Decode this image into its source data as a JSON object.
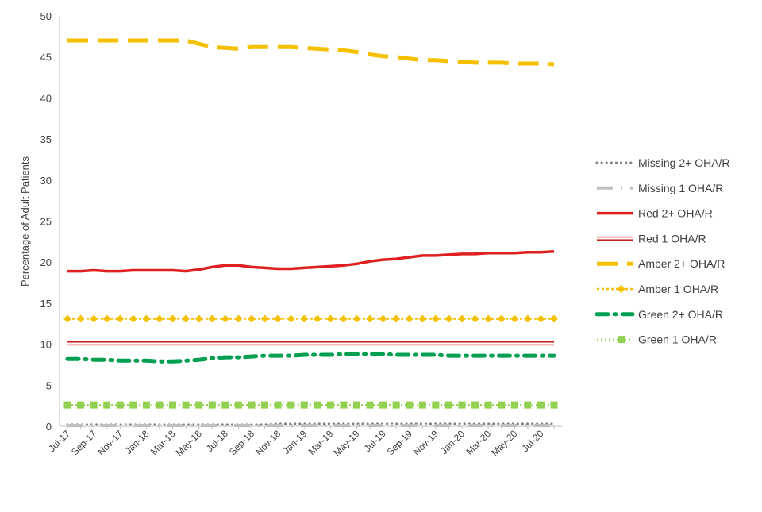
{
  "chart_data": {
    "type": "line",
    "title": "",
    "xlabel": "",
    "ylabel": "Percentage of Adult Patients",
    "ylim": [
      0,
      50
    ],
    "yticks": [
      0,
      5,
      10,
      15,
      20,
      25,
      30,
      35,
      40,
      45,
      50
    ],
    "grid": false,
    "legend_position": "right",
    "x": [
      "Jul-17",
      "Aug-17",
      "Sep-17",
      "Oct-17",
      "Nov-17",
      "Dec-17",
      "Jan-18",
      "Feb-18",
      "Mar-18",
      "Apr-18",
      "May-18",
      "Jun-18",
      "Jul-18",
      "Aug-18",
      "Sep-18",
      "Oct-18",
      "Nov-18",
      "Dec-18",
      "Jan-19",
      "Feb-19",
      "Mar-19",
      "Apr-19",
      "May-19",
      "Jun-19",
      "Jul-19",
      "Aug-19",
      "Sep-19",
      "Oct-19",
      "Nov-19",
      "Dec-19",
      "Jan-20",
      "Feb-20",
      "Mar-20",
      "Apr-20",
      "May-20",
      "Jun-20",
      "Jul-20",
      "Aug-20"
    ],
    "x_tick_labels": [
      "Jul-17",
      "Sep-17",
      "Nov-17",
      "Jan-18",
      "Mar-18",
      "May-18",
      "Jul-18",
      "Sep-18",
      "Nov-18",
      "Jan-19",
      "Mar-19",
      "May-19",
      "Jul-19",
      "Sep-19",
      "Nov-19",
      "Jan-20",
      "Mar-20",
      "May-20",
      "Jul-20"
    ],
    "series": [
      {
        "name": "Missing 2+ OHA/R",
        "color": "#7f7f7f",
        "style": "dotted",
        "values": [
          0.2,
          0.2,
          0.2,
          0.2,
          0.2,
          0.2,
          0.2,
          0.2,
          0.2,
          0.2,
          0.2,
          0.2,
          0.2,
          0.2,
          0.2,
          0.2,
          0.3,
          0.3,
          0.3,
          0.3,
          0.3,
          0.3,
          0.3,
          0.3,
          0.3,
          0.3,
          0.3,
          0.3,
          0.3,
          0.3,
          0.3,
          0.3,
          0.3,
          0.3,
          0.3,
          0.3,
          0.3,
          0.3
        ]
      },
      {
        "name": "Missing 1 OHA/R",
        "color": "#bfbfbf",
        "style": "dash-dot",
        "values": [
          0.1,
          0.1,
          0.1,
          0.1,
          0.1,
          0.1,
          0.1,
          0.1,
          0.1,
          0.1,
          0.1,
          0.1,
          0.1,
          0.1,
          0.1,
          0.1,
          0.1,
          0.1,
          0.1,
          0.1,
          0.1,
          0.1,
          0.1,
          0.1,
          0.1,
          0.1,
          0.1,
          0.1,
          0.1,
          0.1,
          0.1,
          0.1,
          0.1,
          0.1,
          0.1,
          0.1,
          0.1,
          0.1
        ]
      },
      {
        "name": "Red 2+ OHA/R",
        "color": "#e02020",
        "style": "solid",
        "values": [
          18.9,
          18.9,
          19.0,
          18.9,
          18.9,
          19.0,
          19.0,
          19.0,
          19.0,
          18.9,
          19.1,
          19.4,
          19.6,
          19.6,
          19.4,
          19.3,
          19.2,
          19.2,
          19.3,
          19.4,
          19.5,
          19.6,
          19.8,
          20.1,
          20.3,
          20.4,
          20.6,
          20.8,
          20.8,
          20.9,
          21.0,
          21.0,
          21.1,
          21.1,
          21.1,
          21.2,
          21.2,
          21.3
        ]
      },
      {
        "name": "Red 1 OHA/R",
        "color": "#c00000",
        "style": "double",
        "values": [
          10.1,
          10.1,
          10.1,
          10.1,
          10.1,
          10.1,
          10.1,
          10.1,
          10.1,
          10.1,
          10.1,
          10.1,
          10.1,
          10.1,
          10.1,
          10.1,
          10.1,
          10.1,
          10.1,
          10.1,
          10.1,
          10.1,
          10.1,
          10.1,
          10.1,
          10.1,
          10.1,
          10.1,
          10.1,
          10.1,
          10.1,
          10.1,
          10.1,
          10.1,
          10.1,
          10.1,
          10.1,
          10.1
        ]
      },
      {
        "name": "Amber 2+ OHA/R",
        "color": "#f5c000",
        "style": "long-dash",
        "values": [
          47.0,
          47.0,
          47.0,
          47.0,
          47.0,
          47.0,
          47.0,
          47.0,
          47.0,
          47.0,
          46.6,
          46.2,
          46.1,
          46.0,
          46.2,
          46.2,
          46.2,
          46.2,
          46.1,
          46.0,
          45.9,
          45.8,
          45.6,
          45.3,
          45.1,
          45.0,
          44.8,
          44.6,
          44.6,
          44.5,
          44.4,
          44.3,
          44.3,
          44.3,
          44.2,
          44.2,
          44.2,
          44.1
        ]
      },
      {
        "name": "Amber 1 OHA/R",
        "color": "#f5c000",
        "style": "dotted-diamond",
        "values": [
          13.1,
          13.1,
          13.1,
          13.1,
          13.1,
          13.1,
          13.1,
          13.1,
          13.1,
          13.1,
          13.1,
          13.1,
          13.1,
          13.1,
          13.1,
          13.1,
          13.1,
          13.1,
          13.1,
          13.1,
          13.1,
          13.1,
          13.1,
          13.1,
          13.1,
          13.1,
          13.1,
          13.1,
          13.1,
          13.1,
          13.1,
          13.1,
          13.1,
          13.1,
          13.1,
          13.1,
          13.1,
          13.1
        ]
      },
      {
        "name": "Green 2+ OHA/R",
        "color": "#00a050",
        "style": "dash-dot",
        "values": [
          8.2,
          8.2,
          8.1,
          8.1,
          8.0,
          8.0,
          8.0,
          7.9,
          7.9,
          8.0,
          8.1,
          8.3,
          8.4,
          8.4,
          8.5,
          8.6,
          8.6,
          8.6,
          8.7,
          8.7,
          8.7,
          8.8,
          8.8,
          8.8,
          8.8,
          8.7,
          8.7,
          8.7,
          8.7,
          8.6,
          8.6,
          8.6,
          8.6,
          8.6,
          8.6,
          8.6,
          8.6,
          8.6
        ]
      },
      {
        "name": "Green 1 OHA/R",
        "color": "#92d050",
        "style": "dotted-square",
        "values": [
          2.6,
          2.6,
          2.6,
          2.6,
          2.6,
          2.6,
          2.6,
          2.6,
          2.6,
          2.6,
          2.6,
          2.6,
          2.6,
          2.6,
          2.6,
          2.6,
          2.6,
          2.6,
          2.6,
          2.6,
          2.6,
          2.6,
          2.6,
          2.6,
          2.6,
          2.6,
          2.6,
          2.6,
          2.6,
          2.6,
          2.6,
          2.6,
          2.6,
          2.6,
          2.6,
          2.6,
          2.6,
          2.6
        ]
      }
    ]
  }
}
